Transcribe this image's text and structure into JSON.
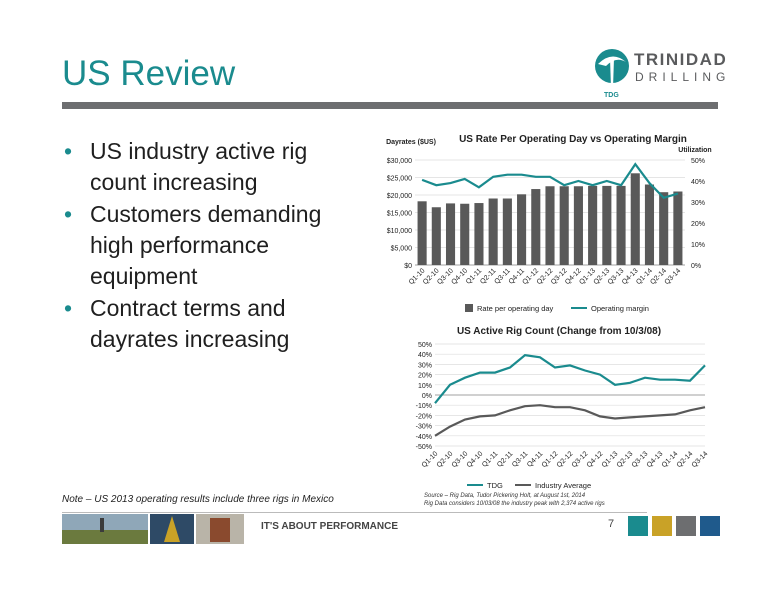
{
  "slide": {
    "title": "US Review",
    "bullets": [
      "US industry active rig count increasing",
      "Customers demanding high performance equipment",
      "Contract terms and dayrates increasing"
    ],
    "note": "Note – US 2013 operating results include three rigs in Mexico",
    "source_line1": "Source – Rig Data, Tudor Pickering Holt, at August 1st, 2014",
    "source_line2": "Rig Data considers 10/03/08 the industry peak with 2,374 active rigs",
    "tagline": "IT'S ABOUT PERFORMANCE",
    "page_number": "7"
  },
  "logo": {
    "line1": "TRINIDAD",
    "line2": "DRILLING",
    "mark_text": "TDG",
    "color": "#1a8b8e"
  },
  "footer_squares": [
    "#1a8b8e",
    "#c9a227",
    "#6d6e70",
    "#1f5a8c"
  ],
  "chart_data": [
    {
      "type": "bar",
      "title": "US Rate Per Operating Day vs Operating Margin",
      "ylabel": "Dayrates ($US)",
      "y2label": "Utilization",
      "categories": [
        "Q1-10",
        "Q2-10",
        "Q3-10",
        "Q4-10",
        "Q1-11",
        "Q2-11",
        "Q3-11",
        "Q4-11",
        "Q1-12",
        "Q2-12",
        "Q3-12",
        "Q4-12",
        "Q1-13",
        "Q2-13",
        "Q3-13",
        "Q4-13",
        "Q1-14",
        "Q2-14",
        "Q3-14"
      ],
      "ylim": [
        0,
        30000
      ],
      "y2lim": [
        0,
        50
      ],
      "yticks": [
        "$0",
        "$5,000",
        "$10,000",
        "$15,000",
        "$20,000",
        "$25,000",
        "$30,000"
      ],
      "y2ticks": [
        "0%",
        "10%",
        "20%",
        "30%",
        "40%",
        "50%"
      ],
      "series": [
        {
          "name": "Rate per operating day",
          "kind": "bar",
          "color": "#595959",
          "values": [
            18200,
            16500,
            17600,
            17500,
            17700,
            19000,
            19000,
            20200,
            21700,
            22500,
            22500,
            22500,
            22600,
            22600,
            22600,
            26200,
            23000,
            20800,
            21000
          ]
        },
        {
          "name": "Operating margin",
          "kind": "line",
          "color": "#1a8b8e",
          "values": [
            40.5,
            38,
            39,
            41,
            37,
            42,
            43,
            43,
            42,
            42,
            38,
            40,
            38,
            40,
            38,
            48,
            39,
            32,
            34
          ]
        }
      ],
      "legend": "bottom"
    },
    {
      "type": "line",
      "title": "US Active Rig Count (Change from 10/3/08)",
      "categories": [
        "Q1-10",
        "Q2-10",
        "Q3-10",
        "Q4-10",
        "Q1-11",
        "Q2-11",
        "Q3-11",
        "Q4-11",
        "Q1-12",
        "Q2-12",
        "Q3-12",
        "Q4-12",
        "Q1-13",
        "Q2-13",
        "Q3-13",
        "Q4-13",
        "Q1-14",
        "Q2-14",
        "Q3-14"
      ],
      "ylim": [
        -50,
        50
      ],
      "yticks": [
        "-50%",
        "-40%",
        "-30%",
        "-20%",
        "-10%",
        "0%",
        "10%",
        "20%",
        "30%",
        "40%",
        "50%"
      ],
      "series": [
        {
          "name": "TDG",
          "color": "#1a8b8e",
          "values": [
            -8,
            10,
            17,
            22,
            22,
            27,
            39,
            37,
            27,
            29,
            24,
            20,
            10,
            12,
            17,
            15,
            15,
            14,
            29
          ]
        },
        {
          "name": "Industry Average",
          "color": "#595959",
          "values": [
            -40,
            -31,
            -24,
            -21,
            -20,
            -15,
            -11,
            -10,
            -12,
            -12,
            -15,
            -21,
            -23,
            -22,
            -21,
            -20,
            -19,
            -15,
            -12
          ]
        }
      ],
      "legend": "bottom"
    }
  ]
}
